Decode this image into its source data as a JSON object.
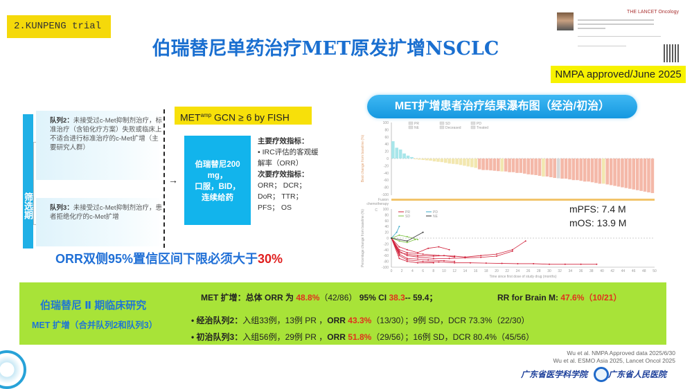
{
  "slide": {
    "tag": "2.KUNPENG trial",
    "title": "伯瑞替尼单药治疗MET原发扩增NSCLC",
    "nmpa": "NMPA approved/June 2025",
    "lancet_logo": "THE LANCET Oncology"
  },
  "design": {
    "screening_label": "筛选期",
    "cohort2_title": "队列2：",
    "cohort2_text": "未接受过c-Met抑制剂治疗，标准治疗（含铂化疗方案）失败或临床上不适合进行标准治疗的c-Met扩增（主要研究人群）",
    "cohort3_title": "队列3：",
    "cohort3_text": "未接受过c-Met抑制剂治疗，患者拒绝化疗的c-Met扩增",
    "biomarker_main": "MET",
    "biomarker_sup": "amp",
    "biomarker_rest": " GCN ≥ 6  by FISH",
    "drug": [
      "伯瑞替尼200",
      "mg，",
      "口服，BID，",
      "连续给药"
    ],
    "primary_title": "主要疗效指标：",
    "primary_item": "• IRC评估的客观缓解率（ORR）",
    "secondary_title": "次要疗效指标：",
    "secondary_items": "ORR； DCR； DoR； TTR； PFS； OS",
    "orr_req": "ORR双侧95%置信区间下限必须大于",
    "orr_req_value": "30%"
  },
  "chart_panel": {
    "title": "MET扩增患者治疗结果瀑布图（经治/初治）",
    "mpfs": "mPFS:  7.4 M",
    "mos": "mOS:  13.9 M",
    "panel_label": "C",
    "row_label": [
      "Fusion",
      "chemotherapy"
    ]
  },
  "chart_data": [
    {
      "type": "bar",
      "title": "Waterfall",
      "ylabel": "Best change from baseline (%)",
      "ylim": [
        -100,
        100
      ],
      "yticks": [
        100,
        80,
        60,
        40,
        20,
        0,
        -20,
        -40,
        -60,
        -80,
        -100
      ],
      "legend": [
        "PR",
        "SD",
        "PD",
        "NE",
        "Deceased",
        "Treated"
      ],
      "legend_colors": {
        "PR": "#f4b8a8",
        "SD": "#f2e7b0",
        "PD": "#a8e6ea",
        "NE": "#d8d8d8"
      },
      "values": [
        48,
        30,
        25,
        14,
        8,
        4,
        -2,
        -3,
        -4,
        -5,
        -6,
        -8,
        -9,
        -10,
        -12,
        -14,
        -15,
        -16,
        -18,
        -20,
        -22,
        -24,
        -26,
        -30,
        -32,
        -32,
        -33,
        -34,
        -35,
        -36,
        -36,
        -38,
        -38,
        -40,
        -40,
        -42,
        -44,
        -45,
        -46,
        -48,
        -50,
        -50,
        -52,
        -54,
        -55,
        -56,
        -56,
        -58,
        -60,
        -60,
        -62,
        -64,
        -64,
        -66,
        -68,
        -70,
        -70,
        -72,
        -74,
        -76,
        -78,
        -80,
        -82,
        -84,
        -86,
        -88,
        -90,
        -92,
        -94,
        -96
      ],
      "status": [
        "PD",
        "PD",
        "PD",
        "PD",
        "PD",
        "PD",
        "SD",
        "SD",
        "SD",
        "SD",
        "SD",
        "SD",
        "SD",
        "SD",
        "SD",
        "SD",
        "SD",
        "SD",
        "SD",
        "SD",
        "SD",
        "SD",
        "SD",
        "PR",
        "PR",
        "PR",
        "PR",
        "PR",
        "PR",
        "SD",
        "PR",
        "PR",
        "PR",
        "PR",
        "PR",
        "PR",
        "PR",
        "PR",
        "PR",
        "PR",
        "SD",
        "PR",
        "PR",
        "PR",
        "NE",
        "PR",
        "PR",
        "PR",
        "PR",
        "PR",
        "PR",
        "PR",
        "PR",
        "PR",
        "PR",
        "PR",
        "SD",
        "PR",
        "PR",
        "PR",
        "PR",
        "PR",
        "PR",
        "PR",
        "PR",
        "PR",
        "PR",
        "PR",
        "PR",
        "PR"
      ]
    },
    {
      "type": "line",
      "title": "Spider plot",
      "xlabel": "Time since first dose of study drug (months)",
      "ylabel": "Percentage change from baseline (%)",
      "xlim": [
        0,
        50
      ],
      "ylim": [
        -100,
        100
      ],
      "xticks": [
        0,
        2,
        4,
        6,
        8,
        10,
        12,
        14,
        16,
        18,
        20,
        22,
        24,
        26,
        28,
        30,
        32,
        34,
        36,
        38,
        40,
        42,
        44,
        46,
        48,
        50
      ],
      "yticks": [
        100,
        80,
        60,
        40,
        20,
        0,
        -20,
        -40,
        -60,
        -80,
        -100
      ],
      "legend": [
        "PR",
        "PD",
        "SD",
        "NE"
      ],
      "series": [
        {
          "name": "PR",
          "x": [
            0,
            1.5,
            3,
            5,
            8,
            10,
            12
          ],
          "y": [
            0,
            -50,
            -55,
            -60,
            -62,
            -60,
            -65
          ]
        },
        {
          "name": "PR",
          "x": [
            0,
            1.5,
            3,
            6,
            9,
            12,
            14,
            17,
            20,
            23,
            25.5
          ],
          "y": [
            0,
            -40,
            -50,
            -55,
            -60,
            -62,
            -65,
            -60,
            -55,
            -40,
            -10
          ]
        },
        {
          "name": "PR",
          "x": [
            0,
            1.5,
            3,
            6,
            9,
            12,
            15,
            18,
            21,
            24,
            27,
            30,
            33,
            36,
            39
          ],
          "y": [
            0,
            -60,
            -75,
            -80,
            -82,
            -85,
            -85,
            -86,
            -87,
            -88,
            -88,
            -90,
            -90,
            -90,
            -90
          ]
        },
        {
          "name": "PR",
          "x": [
            0,
            1.5,
            3,
            5,
            8,
            11,
            14,
            17,
            20,
            23
          ],
          "y": [
            0,
            -45,
            -60,
            -65,
            -70,
            -70,
            -68,
            -66,
            -62,
            -45
          ]
        },
        {
          "name": "PR",
          "x": [
            0,
            1.5,
            3,
            5,
            7,
            9,
            11
          ],
          "y": [
            0,
            -30,
            -40,
            -50,
            -35,
            -30,
            -40
          ]
        },
        {
          "name": "PR",
          "x": [
            0,
            1.5,
            3,
            5,
            8
          ],
          "y": [
            0,
            -70,
            -80,
            -85,
            -85
          ]
        },
        {
          "name": "PR",
          "x": [
            0,
            1.5,
            3,
            5,
            7,
            10,
            12
          ],
          "y": [
            0,
            -55,
            -70,
            -72,
            -75,
            -78,
            -80
          ]
        },
        {
          "name": "SD",
          "x": [
            0,
            1.5,
            3,
            5
          ],
          "y": [
            0,
            10,
            5,
            -5
          ]
        },
        {
          "name": "SD",
          "x": [
            0,
            1.5,
            3,
            4.5
          ],
          "y": [
            0,
            -10,
            -15,
            -5
          ]
        },
        {
          "name": "PD",
          "x": [
            0,
            1,
            1.5
          ],
          "y": [
            0,
            20,
            40
          ]
        },
        {
          "name": "NE",
          "x": [
            0,
            3,
            6
          ],
          "y": [
            0,
            -10,
            20
          ]
        }
      ]
    }
  ],
  "results": {
    "study": "伯瑞替尼 Ⅱ 期临床研究",
    "group": "MET 扩增（合并队列2和队列3）",
    "overall_pre": "MET 扩增：总体 ORR 为 ",
    "overall_orr": "48.8%",
    "overall_n": "（42/86）",
    "ci_pre": "95% CI ",
    "ci_low": "38.3",
    "ci_high": "-- 59.4；",
    "brain_pre": "RR for Brain M: ",
    "brain_val": "47.6%",
    "brain_n": "（10/21）",
    "c2_pre": "• 经治队列2：",
    "c2_mid": "入组33例，13例 PR ，",
    "c2_orr_lbl": "ORR ",
    "c2_orr": "43.3%",
    "c2_post": "（13/30）；9例 SD，DCR 73.3%（22/30）",
    "c3_pre": "• 初治队列3：",
    "c3_mid": "入组56例，29例 PR ，",
    "c3_orr_lbl": "ORR ",
    "c3_orr": "51.8%",
    "c3_post": "（29/56）；16例 SD，DCR 80.4%（45/56）"
  },
  "footer": {
    "ref1": "Wu et al. NMPA Approved data 2025/6/30",
    "ref2": "Wu et al. ESMO Asia 2025, Lancet Oncol 2025",
    "logo1": "广东省医学科学院",
    "logo2": "广东省人民医院"
  }
}
